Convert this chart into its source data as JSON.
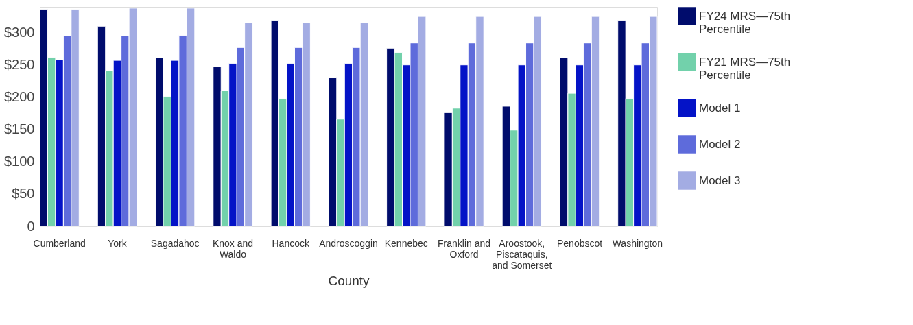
{
  "chart_data": {
    "type": "bar",
    "xlabel": "County",
    "categories": [
      "Cumberland",
      "York",
      "Sagadahoc",
      "Knox and Waldo",
      "Hancock",
      "Androscoggin",
      "Kennebec",
      "Franklin and Oxford",
      "Aroostook, Piscataquis, and Somerset",
      "Penobscot",
      "Washington"
    ],
    "series": [
      {
        "name": "FY24 MRS—75th Percentile",
        "color": "#000c6c",
        "values": [
          336,
          310,
          261,
          247,
          319,
          230,
          276,
          176,
          186,
          261,
          319
        ]
      },
      {
        "name": "FY21 MRS—75th Percentile",
        "color": "#72d1ab",
        "values": [
          262,
          241,
          201,
          210,
          198,
          166,
          269,
          183,
          149,
          206,
          198
        ]
      },
      {
        "name": "Model 1",
        "color": "#0413c7",
        "values": [
          258,
          257,
          257,
          252,
          252,
          252,
          250,
          250,
          250,
          250,
          250
        ]
      },
      {
        "name": "Model 2",
        "color": "#5e6bdb",
        "values": [
          295,
          295,
          296,
          277,
          277,
          277,
          284,
          284,
          284,
          284,
          284
        ]
      },
      {
        "name": "Model 3",
        "color": "#a3ace3",
        "values": [
          336,
          338,
          338,
          315,
          315,
          315,
          325,
          325,
          325,
          325,
          325
        ]
      }
    ],
    "ylim": [
      0,
      340
    ],
    "yticks": [
      0,
      {
        "value": 50,
        "label": "$50"
      },
      {
        "value": 100,
        "label": "$100"
      },
      {
        "value": 150,
        "label": "$150"
      },
      {
        "value": 200,
        "label": "$200"
      },
      {
        "value": 250,
        "label": "$250"
      },
      {
        "value": 300,
        "label": "$300"
      }
    ],
    "grid": false,
    "legend": "right"
  }
}
